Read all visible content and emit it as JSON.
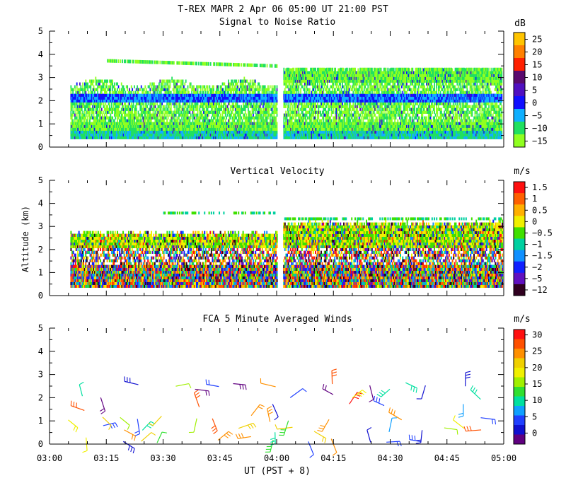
{
  "header": {
    "title": "T-REX  MAPR  2 Apr 06  05:00 UT  21:00  PST"
  },
  "x_axis": {
    "label": "UT  (PST + 8)",
    "tick_labels": [
      "03:00",
      "03:15",
      "03:30",
      "03:45",
      "04:00",
      "04:15",
      "04:30",
      "04:45",
      "05:00"
    ],
    "range_minutes": [
      180,
      300
    ]
  },
  "y_axis": {
    "label": "Altitude (km)",
    "tick_labels": [
      "0",
      "1",
      "2",
      "3",
      "4",
      "5"
    ],
    "range": [
      0,
      5
    ]
  },
  "chart_data": [
    {
      "type": "heatmap",
      "title": "Signal to Noise Ratio",
      "units": "dB",
      "xlim_minutes": [
        180,
        300
      ],
      "ylim_km": [
        0,
        5
      ],
      "data_gap_minutes": [
        240,
        241
      ],
      "colorbar": {
        "labels": [
          "25",
          "20",
          "15",
          "10",
          "5",
          "0",
          "−5",
          "−10",
          "−15"
        ],
        "colors": [
          "#ffc400",
          "#ff8000",
          "#ff2000",
          "#5a0a6e",
          "#5010c0",
          "#1010ff",
          "#10b0ff",
          "#20e060",
          "#90ff20"
        ]
      }
    },
    {
      "type": "heatmap",
      "title": "Vertical Velocity",
      "units": "m/s",
      "xlim_minutes": [
        180,
        300
      ],
      "ylim_km": [
        0,
        5
      ],
      "data_gap_minutes": [
        240,
        241
      ],
      "colorbar": {
        "labels": [
          "1.5",
          "1",
          "0.5",
          "0",
          "−0.5",
          "−1",
          "−1.5",
          "−2",
          "−5",
          "−12"
        ],
        "colors": [
          "#ff1010",
          "#ff6000",
          "#ffb000",
          "#f0f000",
          "#40e000",
          "#00d0a0",
          "#1090ff",
          "#1020ff",
          "#6010c0",
          "#300020"
        ]
      }
    },
    {
      "type": "scatter",
      "title": "FCA 5 Minute Averaged Winds",
      "units": "m/s",
      "xlim_minutes": [
        180,
        300
      ],
      "ylim_km": [
        0,
        5
      ],
      "colorbar": {
        "labels": [
          "30",
          "25",
          "20",
          "15",
          "10",
          "5",
          "0"
        ],
        "colors": [
          "#ff1010",
          "#ff5000",
          "#ff9000",
          "#f0d000",
          "#f0f000",
          "#a0f000",
          "#30e030",
          "#00e0a0",
          "#10a0ff",
          "#2040ff",
          "#1010d0",
          "#600080"
        ]
      }
    }
  ]
}
